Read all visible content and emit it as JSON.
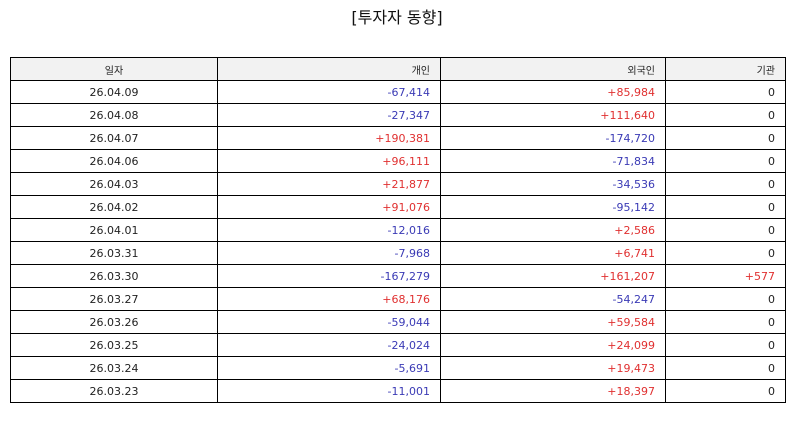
{
  "title": "[투자자 동향]",
  "columns": [
    "일자",
    "개인",
    "외국인",
    "기관"
  ],
  "colors": {
    "positive": "#e03030",
    "negative": "#3a3ab5",
    "neutral": "#222222",
    "header_bg": "#f2f2f2",
    "border": "#000000"
  },
  "rows": [
    {
      "date": "26.04.09",
      "individual": "-67,414",
      "foreign": "+85,984",
      "institution": "0"
    },
    {
      "date": "26.04.08",
      "individual": "-27,347",
      "foreign": "+111,640",
      "institution": "0"
    },
    {
      "date": "26.04.07",
      "individual": "+190,381",
      "foreign": "-174,720",
      "institution": "0"
    },
    {
      "date": "26.04.06",
      "individual": "+96,111",
      "foreign": "-71,834",
      "institution": "0"
    },
    {
      "date": "26.04.03",
      "individual": "+21,877",
      "foreign": "-34,536",
      "institution": "0"
    },
    {
      "date": "26.04.02",
      "individual": "+91,076",
      "foreign": "-95,142",
      "institution": "0"
    },
    {
      "date": "26.04.01",
      "individual": "-12,016",
      "foreign": "+2,586",
      "institution": "0"
    },
    {
      "date": "26.03.31",
      "individual": "-7,968",
      "foreign": "+6,741",
      "institution": "0"
    },
    {
      "date": "26.03.30",
      "individual": "-167,279",
      "foreign": "+161,207",
      "institution": "+577"
    },
    {
      "date": "26.03.27",
      "individual": "+68,176",
      "foreign": "-54,247",
      "institution": "0"
    },
    {
      "date": "26.03.26",
      "individual": "-59,044",
      "foreign": "+59,584",
      "institution": "0"
    },
    {
      "date": "26.03.25",
      "individual": "-24,024",
      "foreign": "+24,099",
      "institution": "0"
    },
    {
      "date": "26.03.24",
      "individual": "-5,691",
      "foreign": "+19,473",
      "institution": "0"
    },
    {
      "date": "26.03.23",
      "individual": "-11,001",
      "foreign": "+18,397",
      "institution": "0"
    }
  ]
}
